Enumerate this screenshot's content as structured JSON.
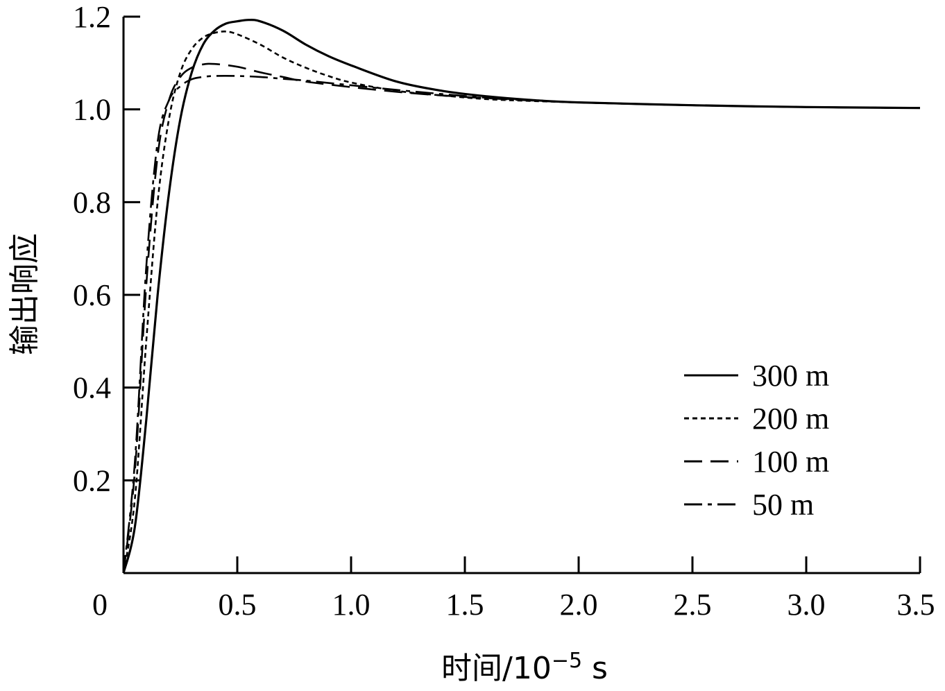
{
  "chart_data": {
    "type": "line",
    "title": "",
    "xlabel": {
      "prefix": "时间/10",
      "exponent": "−5",
      "unit": " s"
    },
    "ylabel": "输出响应",
    "xlim": [
      0,
      3.5
    ],
    "ylim": [
      0,
      1.2
    ],
    "x_ticks": [
      {
        "value": 0,
        "label": "0"
      },
      {
        "value": 0.5,
        "label": "0.5"
      },
      {
        "value": 1.0,
        "label": "1.0"
      },
      {
        "value": 1.5,
        "label": "1.5"
      },
      {
        "value": 2.0,
        "label": "2.0"
      },
      {
        "value": 2.5,
        "label": "2.5"
      },
      {
        "value": 3.0,
        "label": "3.0"
      },
      {
        "value": 3.5,
        "label": "3.5"
      }
    ],
    "y_ticks": [
      {
        "value": 0.2,
        "label": "0.2"
      },
      {
        "value": 0.4,
        "label": "0.4"
      },
      {
        "value": 0.6,
        "label": "0.6"
      },
      {
        "value": 0.8,
        "label": "0.8"
      },
      {
        "value": 1.0,
        "label": "1.0"
      },
      {
        "value": 1.2,
        "label": "1.2"
      }
    ],
    "grid": false,
    "legend_position": "right-center",
    "series": [
      {
        "name": "300 m",
        "style": "solid",
        "x": [
          0,
          0.05,
          0.1,
          0.15,
          0.2,
          0.25,
          0.3,
          0.35,
          0.4,
          0.45,
          0.5,
          0.55,
          0.6,
          0.7,
          0.8,
          0.9,
          1.0,
          1.2,
          1.4,
          1.6,
          1.8,
          2.0,
          2.5,
          3.0,
          3.5
        ],
        "y": [
          0,
          0.1,
          0.33,
          0.6,
          0.82,
          0.98,
          1.08,
          1.14,
          1.17,
          1.185,
          1.19,
          1.193,
          1.19,
          1.17,
          1.14,
          1.115,
          1.095,
          1.06,
          1.04,
          1.028,
          1.02,
          1.015,
          1.009,
          1.005,
          1.003
        ]
      },
      {
        "name": "200 m",
        "style": "dotted",
        "x": [
          0,
          0.05,
          0.1,
          0.15,
          0.2,
          0.25,
          0.3,
          0.35,
          0.4,
          0.45,
          0.5,
          0.6,
          0.7,
          0.8,
          0.9,
          1.0,
          1.2,
          1.4,
          1.6,
          1.8,
          2.0,
          2.5,
          3.0,
          3.5
        ],
        "y": [
          0,
          0.16,
          0.5,
          0.8,
          0.98,
          1.08,
          1.13,
          1.155,
          1.165,
          1.168,
          1.162,
          1.14,
          1.112,
          1.09,
          1.072,
          1.058,
          1.04,
          1.03,
          1.022,
          1.018,
          1.015,
          1.009,
          1.005,
          1.003
        ]
      },
      {
        "name": "100 m",
        "style": "dashed",
        "x": [
          0,
          0.05,
          0.1,
          0.15,
          0.2,
          0.25,
          0.3,
          0.35,
          0.4,
          0.5,
          0.6,
          0.7,
          0.8,
          1.0,
          1.2,
          1.4,
          1.6,
          1.8,
          2.0,
          2.5,
          3.0,
          3.5
        ],
        "y": [
          0,
          0.22,
          0.62,
          0.9,
          1.02,
          1.07,
          1.09,
          1.097,
          1.098,
          1.092,
          1.08,
          1.07,
          1.06,
          1.048,
          1.038,
          1.03,
          1.024,
          1.019,
          1.015,
          1.009,
          1.005,
          1.003
        ]
      },
      {
        "name": "50 m",
        "style": "dashdot",
        "x": [
          0,
          0.05,
          0.1,
          0.15,
          0.2,
          0.25,
          0.3,
          0.35,
          0.4,
          0.5,
          0.6,
          0.7,
          0.8,
          1.0,
          1.2,
          1.4,
          1.6,
          1.8,
          2.0,
          2.5,
          3.0,
          3.5
        ],
        "y": [
          0,
          0.24,
          0.66,
          0.93,
          1.02,
          1.05,
          1.065,
          1.07,
          1.072,
          1.072,
          1.07,
          1.066,
          1.062,
          1.052,
          1.042,
          1.033,
          1.025,
          1.02,
          1.015,
          1.009,
          1.005,
          1.003
        ]
      }
    ]
  }
}
